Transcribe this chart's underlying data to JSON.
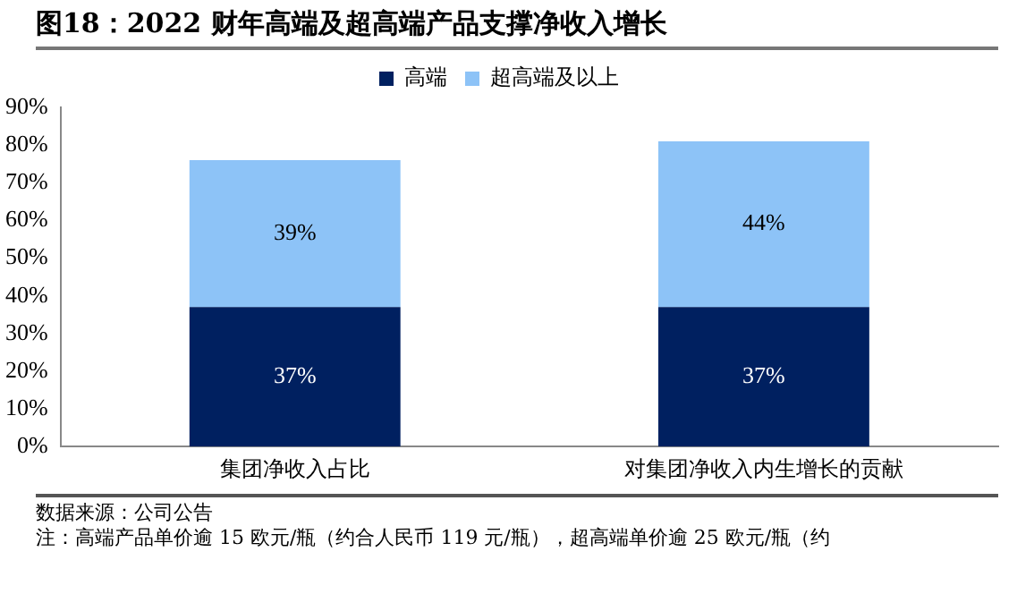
{
  "chart_data": {
    "type": "bar",
    "title": "图18：2022 财年高端及超高端产品支撑净收入增长",
    "categories": [
      "集团净收入占比",
      "对集团净收入内生增长的贡献"
    ],
    "stacked": true,
    "series": [
      {
        "name": "高端",
        "color": "#002060",
        "values": [
          37,
          37
        ],
        "value_labels": [
          "37%",
          "37%"
        ]
      },
      {
        "name": "超高端及以上",
        "color": "#8dc3f7",
        "values": [
          39,
          44
        ],
        "value_labels": [
          "39%",
          "44%"
        ]
      }
    ],
    "ylim": [
      0,
      90
    ],
    "yticks": [
      {
        "value": 0,
        "label": "0%"
      },
      {
        "value": 10,
        "label": "10%"
      },
      {
        "value": 20,
        "label": "20%"
      },
      {
        "value": 30,
        "label": "30%"
      },
      {
        "value": 40,
        "label": "40%"
      },
      {
        "value": 50,
        "label": "50%"
      },
      {
        "value": 60,
        "label": "60%"
      },
      {
        "value": 70,
        "label": "70%"
      },
      {
        "value": 80,
        "label": "80%"
      },
      {
        "value": 90,
        "label": "90%"
      }
    ],
    "grid": false,
    "legend": "top",
    "annotations": [
      "数据来源：公司公告",
      "注：高端产品单价逾 15 欧元/瓶（约合人民币 119 元/瓶），超高端单价逾 25 欧元/瓶（约"
    ]
  }
}
